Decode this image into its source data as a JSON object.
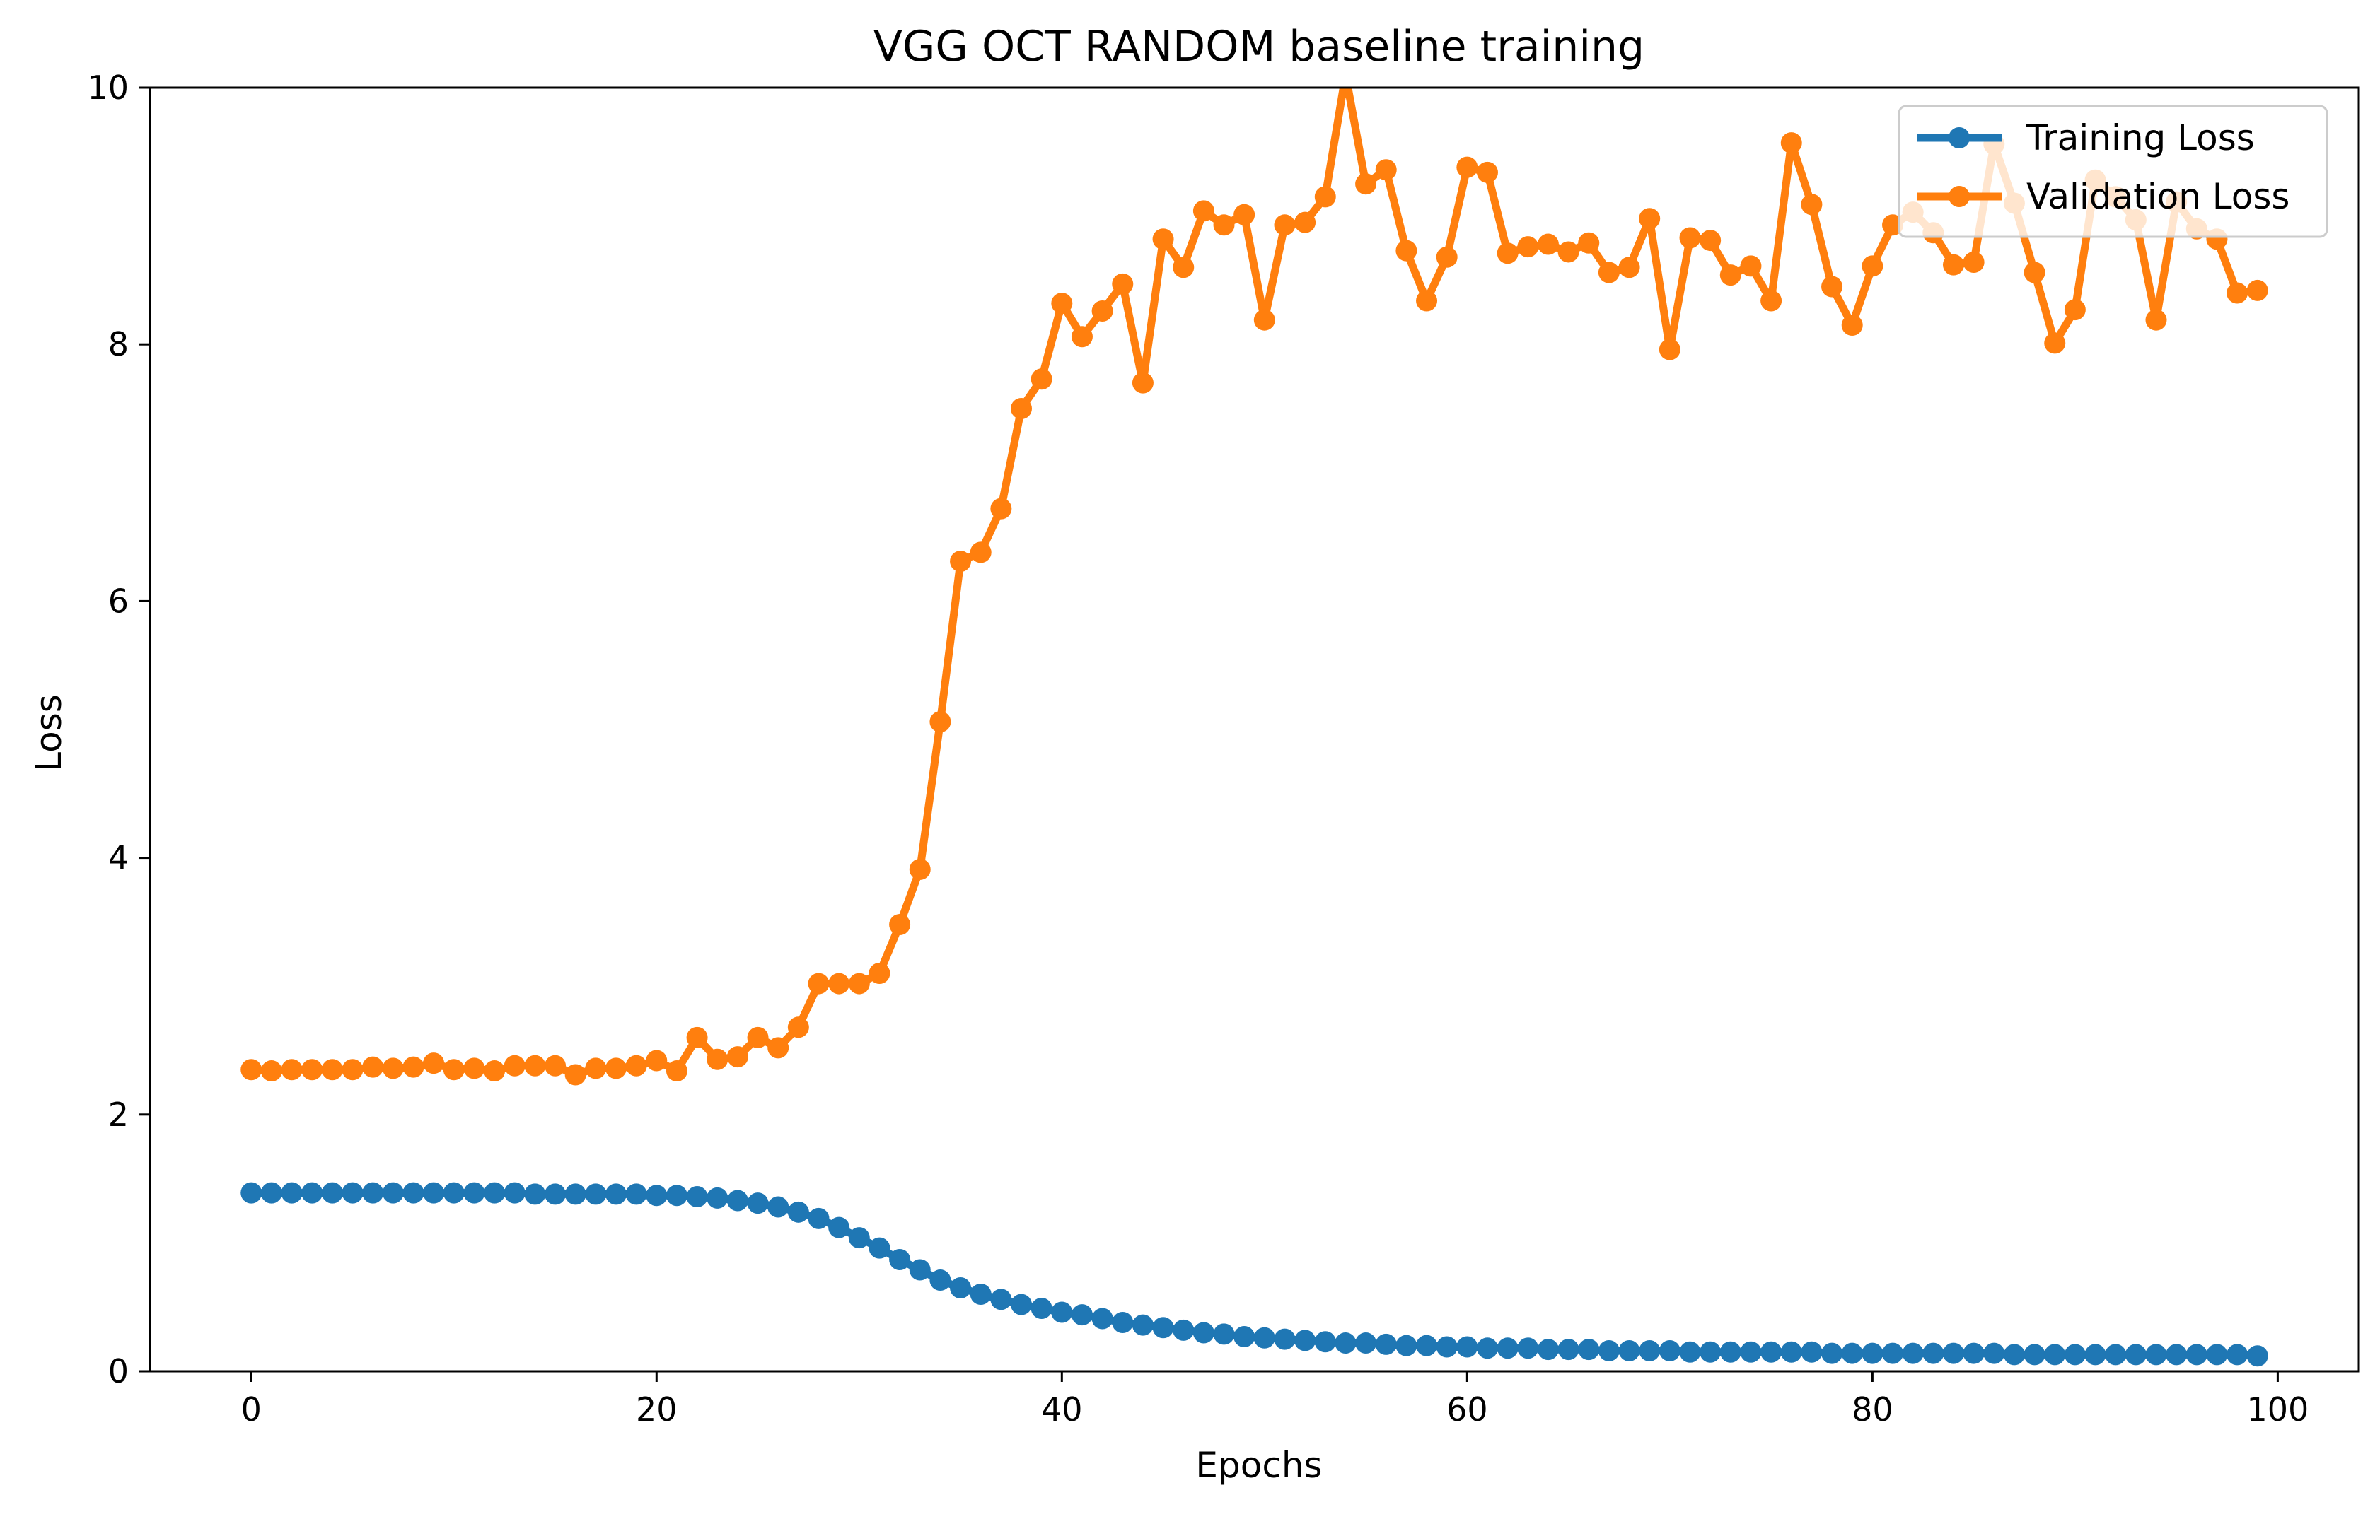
{
  "chart_data": {
    "type": "line",
    "title": "VGG OCT RANDOM baseline training",
    "xlabel": "Epochs",
    "ylabel": "Loss",
    "xlim": [
      -5,
      104
    ],
    "ylim": [
      0,
      10
    ],
    "xticks": [
      0,
      20,
      40,
      60,
      80,
      100
    ],
    "yticks": [
      0,
      2,
      4,
      6,
      8,
      10
    ],
    "grid": false,
    "legend_position": "top-right",
    "x": [
      0,
      1,
      2,
      3,
      4,
      5,
      6,
      7,
      8,
      9,
      10,
      11,
      12,
      13,
      14,
      15,
      16,
      17,
      18,
      19,
      20,
      21,
      22,
      23,
      24,
      25,
      26,
      27,
      28,
      29,
      30,
      31,
      32,
      33,
      34,
      35,
      36,
      37,
      38,
      39,
      40,
      41,
      42,
      43,
      44,
      45,
      46,
      47,
      48,
      49,
      50,
      51,
      52,
      53,
      54,
      55,
      56,
      57,
      58,
      59,
      60,
      61,
      62,
      63,
      64,
      65,
      66,
      67,
      68,
      69,
      70,
      71,
      72,
      73,
      74,
      75,
      76,
      77,
      78,
      79,
      80,
      81,
      82,
      83,
      84,
      85,
      86,
      87,
      88,
      89,
      90,
      91,
      92,
      93,
      94,
      95,
      96,
      97,
      98,
      99
    ],
    "series": [
      {
        "name": "Training Loss",
        "color": "#1f77b4",
        "values": [
          1.39,
          1.39,
          1.39,
          1.39,
          1.39,
          1.39,
          1.39,
          1.39,
          1.39,
          1.39,
          1.39,
          1.39,
          1.39,
          1.39,
          1.38,
          1.38,
          1.38,
          1.38,
          1.38,
          1.38,
          1.37,
          1.37,
          1.36,
          1.35,
          1.33,
          1.31,
          1.28,
          1.24,
          1.19,
          1.12,
          1.04,
          0.96,
          0.87,
          0.79,
          0.71,
          0.65,
          0.6,
          0.56,
          0.52,
          0.49,
          0.46,
          0.44,
          0.41,
          0.38,
          0.36,
          0.34,
          0.32,
          0.3,
          0.29,
          0.27,
          0.26,
          0.25,
          0.24,
          0.23,
          0.22,
          0.22,
          0.21,
          0.2,
          0.2,
          0.19,
          0.19,
          0.18,
          0.18,
          0.18,
          0.17,
          0.17,
          0.17,
          0.16,
          0.16,
          0.16,
          0.16,
          0.15,
          0.15,
          0.15,
          0.15,
          0.15,
          0.15,
          0.15,
          0.14,
          0.14,
          0.14,
          0.14,
          0.14,
          0.14,
          0.14,
          0.14,
          0.14,
          0.13,
          0.13,
          0.13,
          0.13,
          0.13,
          0.13,
          0.13,
          0.13,
          0.13,
          0.13,
          0.13,
          0.13,
          0.12
        ]
      },
      {
        "name": "Validation Loss",
        "color": "#ff7f0e",
        "values": [
          2.35,
          2.34,
          2.35,
          2.35,
          2.35,
          2.35,
          2.37,
          2.36,
          2.37,
          2.4,
          2.35,
          2.36,
          2.34,
          2.38,
          2.38,
          2.38,
          2.31,
          2.36,
          2.36,
          2.38,
          2.42,
          2.34,
          2.6,
          2.43,
          2.45,
          2.6,
          2.52,
          2.68,
          3.02,
          3.02,
          3.02,
          3.1,
          3.48,
          3.91,
          5.06,
          6.31,
          6.38,
          6.72,
          7.5,
          7.73,
          8.32,
          8.06,
          8.26,
          8.47,
          7.7,
          8.82,
          8.6,
          9.04,
          8.93,
          9.01,
          8.19,
          8.93,
          8.95,
          9.15,
          10.1,
          9.25,
          9.36,
          8.73,
          8.34,
          8.68,
          9.38,
          9.34,
          8.71,
          8.76,
          8.78,
          8.72,
          8.79,
          8.56,
          8.6,
          8.98,
          7.96,
          8.83,
          8.81,
          8.54,
          8.61,
          8.34,
          9.57,
          9.09,
          8.45,
          8.15,
          8.61,
          8.93,
          9.03,
          8.87,
          8.62,
          8.64,
          9.56,
          9.1,
          8.56,
          8.01,
          8.27,
          9.28,
          9.15,
          8.97,
          8.19,
          9.11,
          8.9,
          8.82,
          8.4,
          8.42
        ]
      }
    ]
  }
}
